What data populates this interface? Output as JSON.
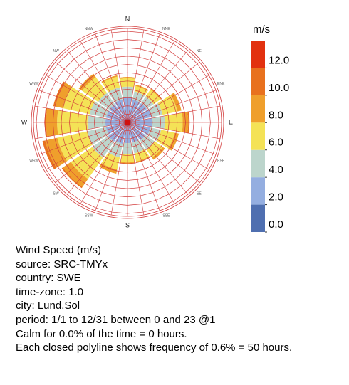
{
  "chart_data": {
    "type": "windrose",
    "categories": [
      "N",
      "NNE",
      "NE",
      "ENE",
      "E",
      "ESE",
      "SE",
      "SSE",
      "S",
      "SSW",
      "SW",
      "WSW",
      "W",
      "WNW",
      "NW",
      "NNW"
    ],
    "rlim": [
      0,
      6.6
    ],
    "rticks": [
      0.6,
      1.2,
      1.8,
      2.4,
      3.0,
      3.6,
      4.2,
      4.8,
      5.4,
      6.0,
      6.6
    ],
    "series": [
      {
        "color": "#4f6fb0",
        "values": [
          0.3,
          0.3,
          0.3,
          0.3,
          0.3,
          0.3,
          0.3,
          0.3,
          0.3,
          0.3,
          0.3,
          0.3,
          0.3,
          0.3,
          0.3,
          0.3
        ]
      },
      {
        "color": "#94aee0",
        "values": [
          1.5,
          1.4,
          1.4,
          1.5,
          1.5,
          1.4,
          1.3,
          1.2,
          1.2,
          1.3,
          1.4,
          1.3,
          1.3,
          1.3,
          1.3,
          1.4
        ]
      },
      {
        "color": "#bcd5cc",
        "values": [
          0.8,
          0.6,
          0.6,
          0.8,
          0.9,
          0.8,
          0.8,
          0.8,
          0.8,
          1.0,
          1.4,
          1.4,
          1.3,
          1.2,
          1.0,
          0.9
        ]
      },
      {
        "color": "#f4e256",
        "values": [
          0.6,
          0.4,
          0.6,
          1.1,
          1.3,
          1.0,
          0.7,
          0.6,
          0.6,
          0.9,
          1.9,
          2.2,
          2.2,
          2.0,
          1.4,
          0.8
        ]
      },
      {
        "color": "#ef9f2c",
        "values": [
          0.1,
          0.1,
          0.1,
          0.3,
          0.4,
          0.3,
          0.2,
          0.1,
          0.1,
          0.3,
          0.7,
          0.9,
          0.8,
          0.6,
          0.3,
          0.1
        ]
      },
      {
        "color": "#e8711e",
        "values": [
          0,
          0,
          0,
          0,
          0.1,
          0,
          0,
          0,
          0,
          0,
          0.1,
          0.2,
          0.1,
          0.1,
          0,
          0
        ]
      },
      {
        "color": "#e2310f",
        "values": [
          0,
          0,
          0,
          0,
          0,
          0,
          0,
          0,
          0,
          0,
          0,
          0,
          0,
          0,
          0,
          0
        ]
      }
    ],
    "colorbar": {
      "title": "m/s",
      "clim": [
        0,
        14
      ],
      "bounds": [
        0,
        2,
        4,
        6,
        8,
        10,
        12,
        14
      ],
      "ticks": [
        {
          "value": 0,
          "label": "0.0"
        },
        {
          "value": 2,
          "label": "2.0"
        },
        {
          "value": 4,
          "label": "4.0"
        },
        {
          "value": 6,
          "label": "6.0"
        },
        {
          "value": 8,
          "label": "8.0"
        },
        {
          "value": 10,
          "label": "10.0"
        },
        {
          "value": 12,
          "label": "12.0"
        }
      ]
    }
  },
  "caption": [
    "Wind Speed (m/s)",
    "source: SRC-TMYx",
    "country: SWE",
    "time-zone: 1.0",
    "city: Lund.Sol",
    "period: 1/1 to 12/31 between 0 and 23 @1",
    "Calm for 0.0% of the time = 0 hours.",
    "Each closed polyline shows frequency of 0.6% = 50 hours."
  ]
}
